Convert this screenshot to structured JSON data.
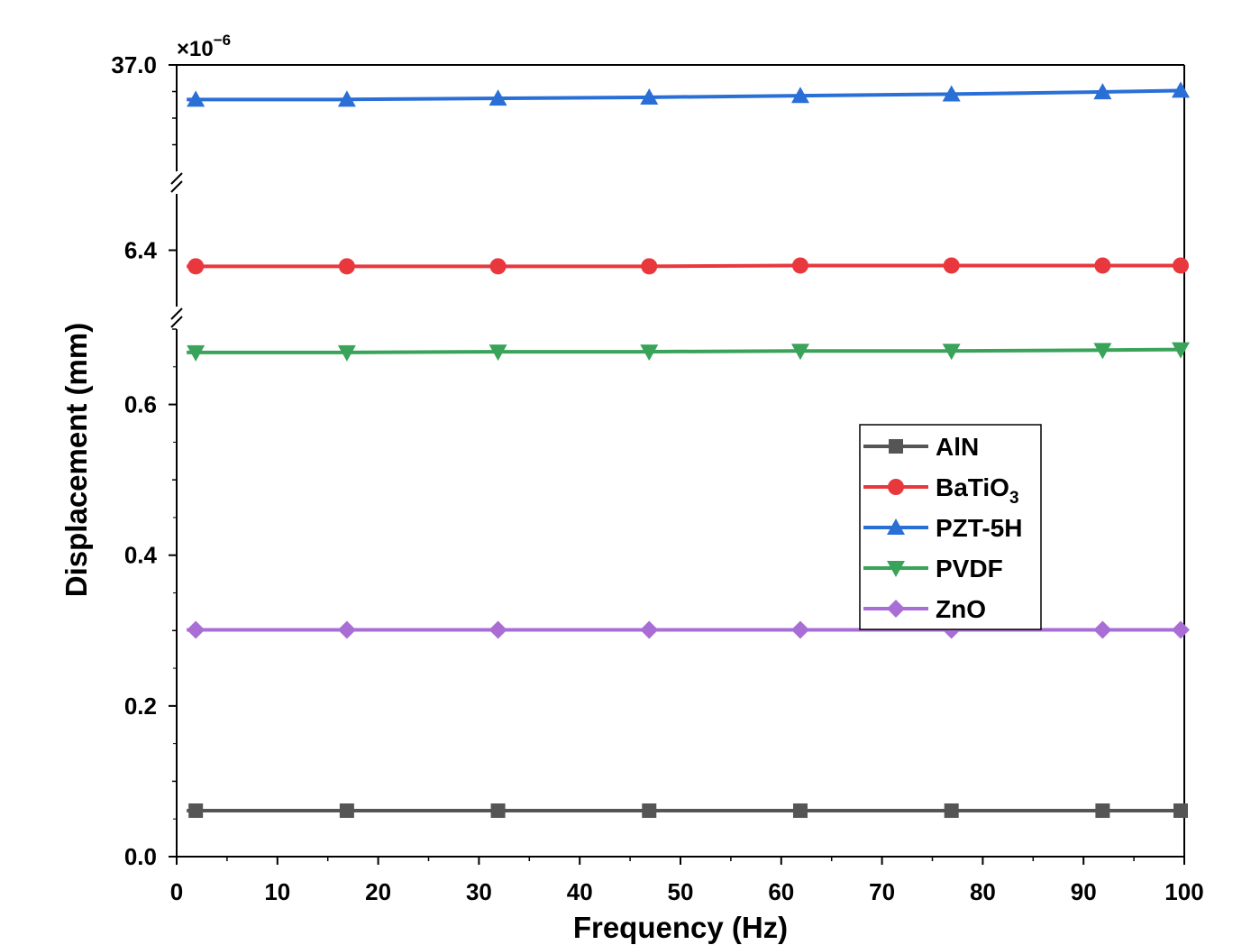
{
  "chart_data": {
    "type": "line",
    "xlabel": "Frequency (Hz)",
    "ylabel": "Displacement (mm)",
    "y_multiplier": "×10",
    "y_multiplier_exp": "−6",
    "xlim": [
      0,
      100
    ],
    "x_ticks": [
      "0",
      "10",
      "20",
      "30",
      "40",
      "50",
      "60",
      "70",
      "80",
      "90",
      "100"
    ],
    "y_axis_breaks": [
      {
        "range": [
          0.0,
          0.7
        ],
        "tick_labels": [
          "0.0",
          "0.2",
          "0.4",
          "0.6"
        ]
      },
      {
        "range": [
          6.33,
          6.47
        ],
        "tick_labels": [
          "6.4"
        ]
      },
      {
        "range": [
          36.8,
          37.0
        ],
        "tick_labels": [
          "37.0"
        ]
      }
    ],
    "x": [
      1,
      16,
      31,
      46,
      61,
      76,
      91,
      100
    ],
    "series": [
      {
        "name": "AlN",
        "marker": "square",
        "color": "#555555",
        "values": [
          0.061,
          0.061,
          0.061,
          0.061,
          0.061,
          0.061,
          0.061,
          0.061
        ]
      },
      {
        "name": "BaTiO",
        "name_sub": "3",
        "marker": "circle",
        "color": "#e8383d",
        "values": [
          6.38,
          6.38,
          6.38,
          6.38,
          6.381,
          6.381,
          6.381,
          6.381
        ]
      },
      {
        "name": "PZT-5H",
        "marker": "triangle-up",
        "color": "#2a6fd6",
        "values": [
          36.935,
          36.935,
          36.937,
          36.939,
          36.942,
          36.945,
          36.949,
          36.952
        ]
      },
      {
        "name": "PVDF",
        "marker": "triangle-down",
        "color": "#3aa35a",
        "values": [
          0.669,
          0.669,
          0.67,
          0.67,
          0.671,
          0.671,
          0.672,
          0.673
        ]
      },
      {
        "name": "ZnO",
        "marker": "diamond",
        "color": "#a96ed6",
        "values": [
          0.301,
          0.301,
          0.301,
          0.301,
          0.301,
          0.301,
          0.301,
          0.301
        ]
      }
    ],
    "legend_position": "right-middle",
    "grid": false
  }
}
